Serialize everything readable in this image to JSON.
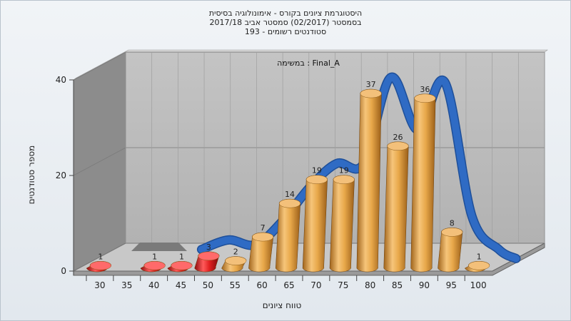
{
  "chart_data": {
    "type": "bar",
    "title_lines": [
      "היסטוגרמת ציונים בקורס - אימונולוגיה בסיסית",
      "בסמסטר  (02/2017)  סמסטר אביב 2017/18",
      "סטודנטים רשומים - 193"
    ],
    "annotation": "במשימה : Final_A",
    "xlabel": "טווח ציונים",
    "ylabel": "מספר סטודנטים",
    "x_tick_labels": [
      "30",
      "35",
      "40",
      "45",
      "50",
      "55",
      "60",
      "65",
      "70",
      "75",
      "80",
      "85",
      "90",
      "95",
      "100"
    ],
    "y_tick_labels": [
      "0",
      "20",
      "40"
    ],
    "ylim": [
      0,
      40
    ],
    "categories": [
      "30",
      "35",
      "40",
      "45",
      "50",
      "55",
      "60",
      "65",
      "70",
      "75",
      "80",
      "85",
      "90",
      "95",
      "100"
    ],
    "values": [
      1,
      null,
      1,
      1,
      3,
      2,
      7,
      14,
      19,
      19,
      37,
      26,
      36,
      8,
      1
    ],
    "colors": {
      "fail": "#e02020",
      "pass": "#e8a84a",
      "curve": "#2f6bc4",
      "back_wall": "#b9b9b9",
      "side_wall": "#8c8c8c"
    }
  }
}
